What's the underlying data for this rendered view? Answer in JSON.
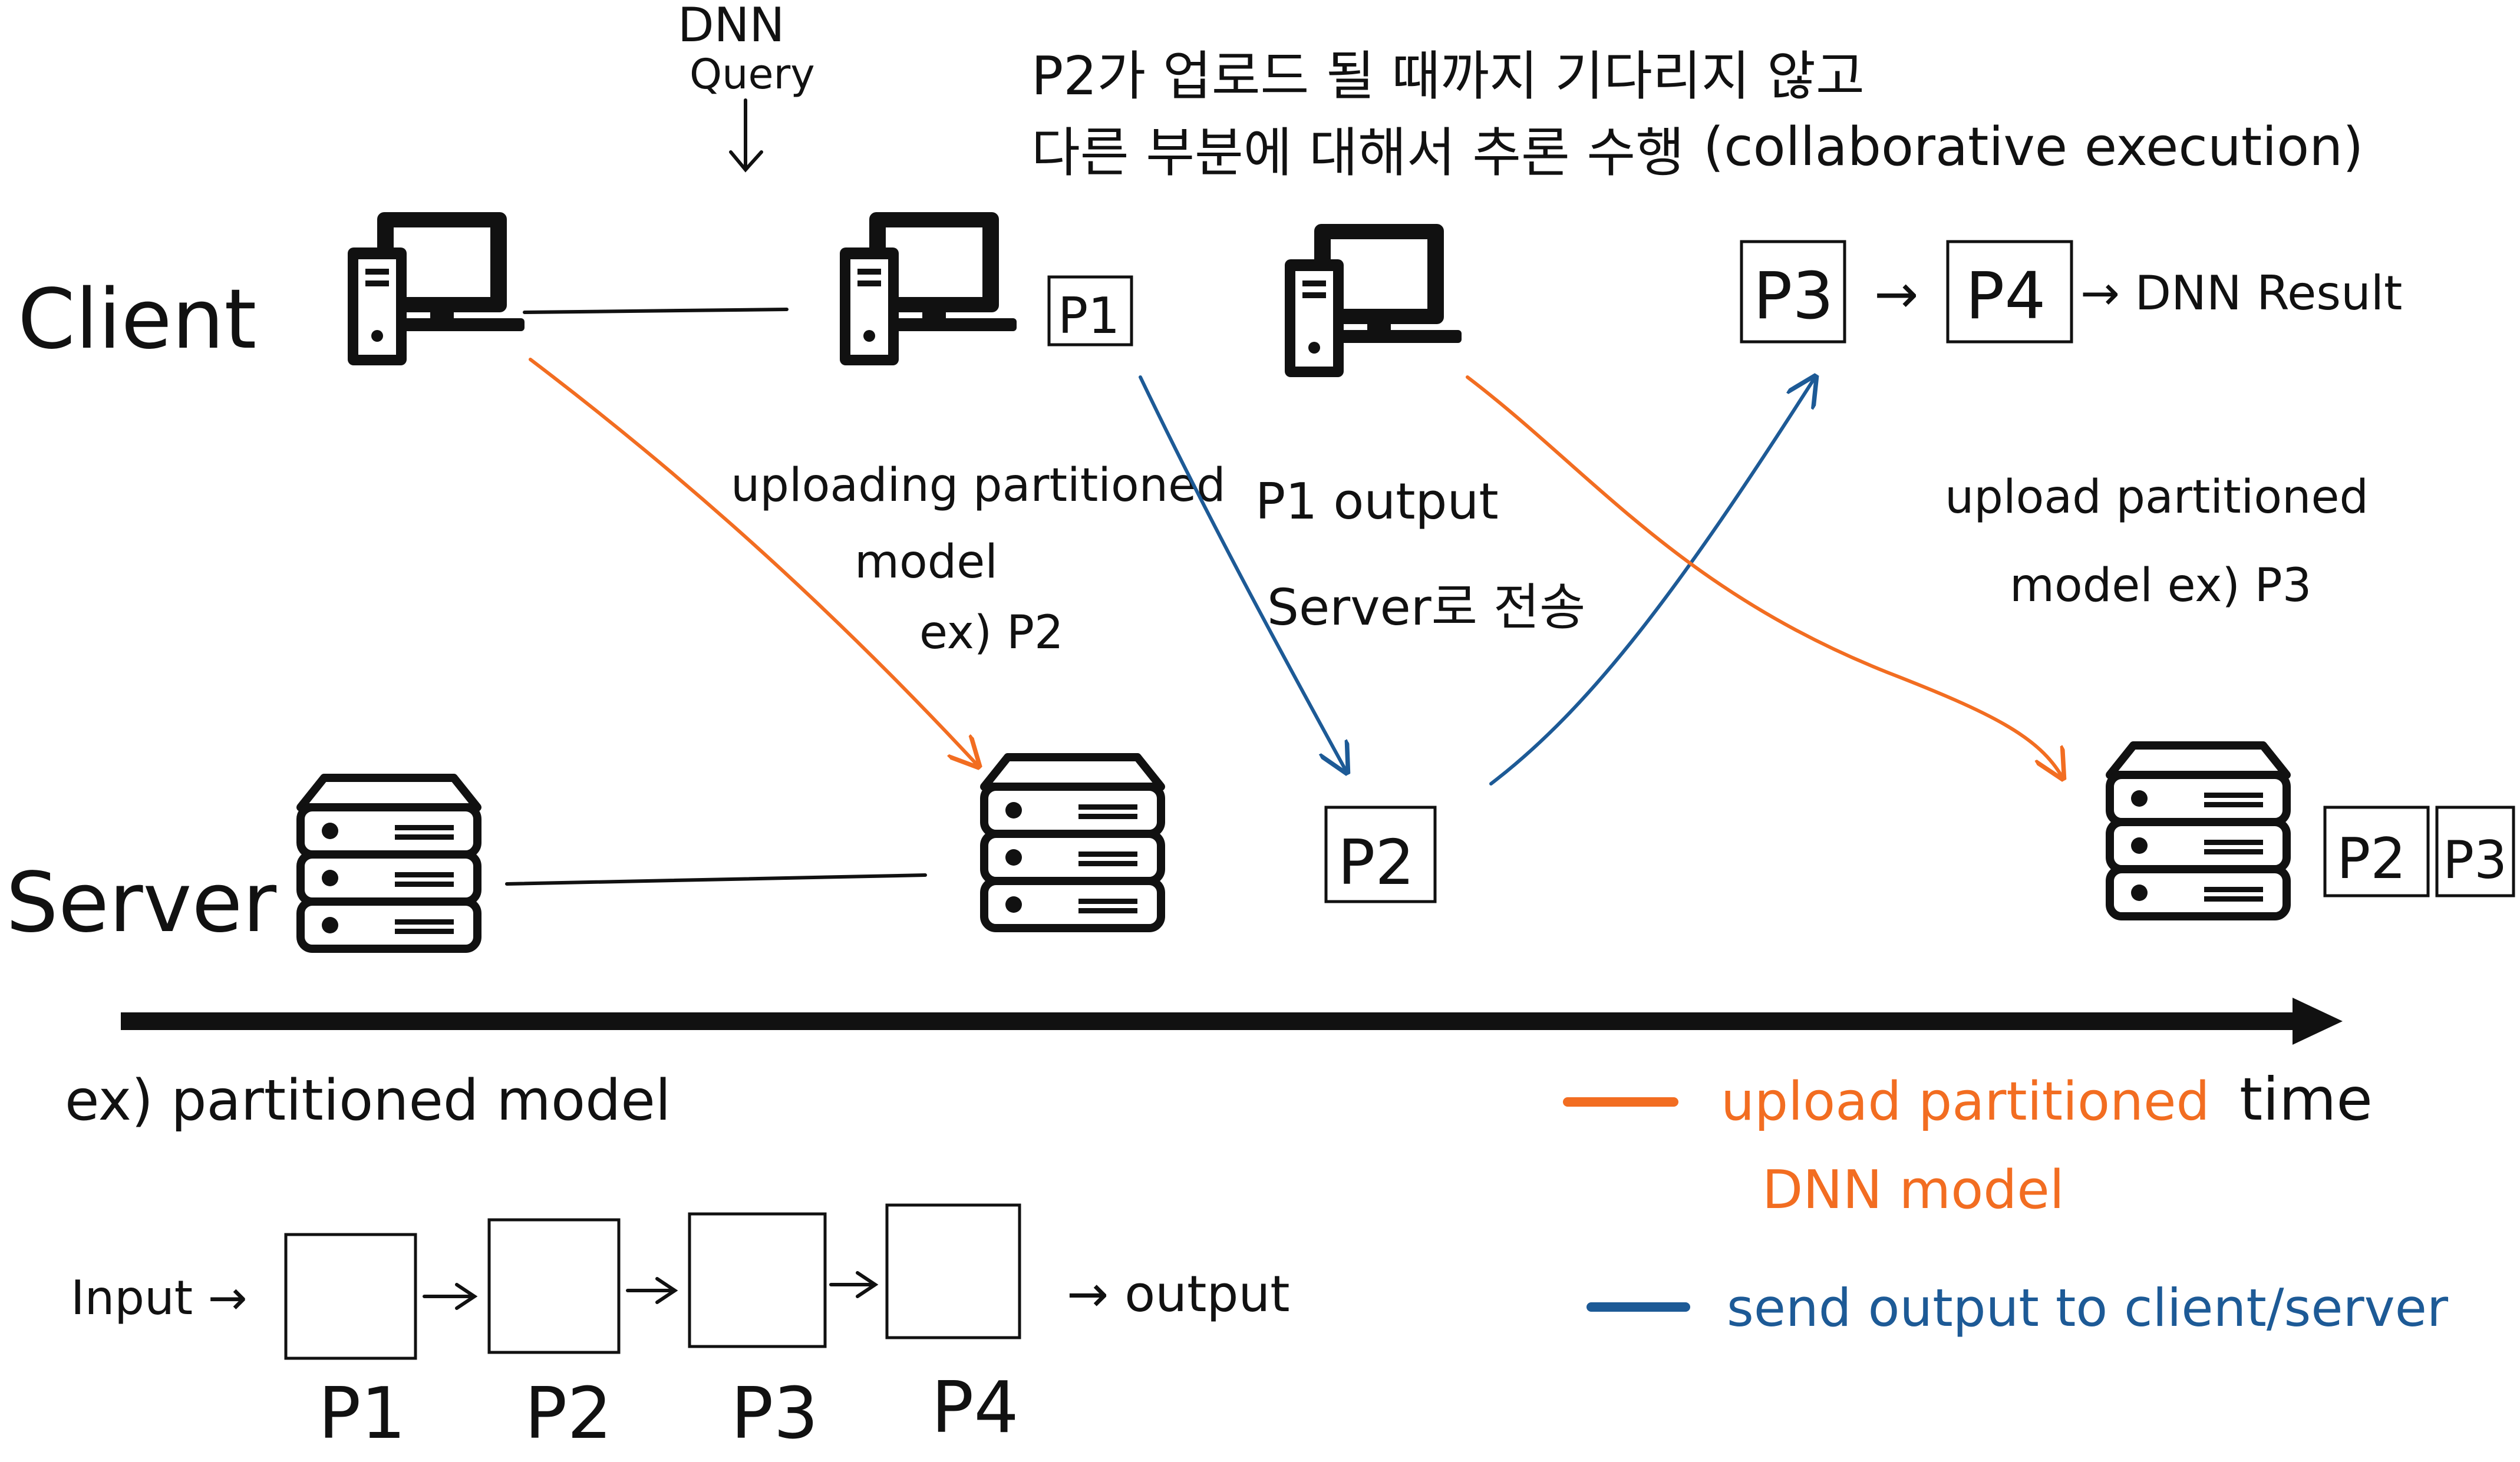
{
  "rows": {
    "client": "Client",
    "server": "Server"
  },
  "query": {
    "line1": "DNN",
    "line2": "Query"
  },
  "header_note": {
    "line1": "P2가 업로드 될 때까지 기다리지 않고",
    "line2": "다른 부분에 대해서 추론 수행",
    "english": "(collaborative execution)"
  },
  "annotations": {
    "upload_p2": {
      "line1": "uploading partitioned",
      "line2": "model",
      "line3": "ex) P2"
    },
    "p1_output": {
      "line1": "P1 output",
      "line2": "Server로 전송"
    },
    "upload_p3": {
      "line1": "upload partitioned",
      "line2": "model ex) P3"
    }
  },
  "boxes": {
    "client_p1": "P1",
    "server_p2": "P2",
    "client_p3": "P3",
    "client_p4": "P4",
    "server_end_p2": "P2",
    "server_end_p3": "P3"
  },
  "result": "→ DNN Result",
  "result_arrow": "→",
  "timeline": {
    "label": "time"
  },
  "example": {
    "title": "ex) partitioned model",
    "input": "Input →",
    "output": "→ output",
    "parts": [
      "P1",
      "P2",
      "P3",
      "P4"
    ]
  },
  "legend": {
    "orange_line1": "upload partitioned",
    "orange_line2": "DNN model",
    "blue": "send output to client/server"
  },
  "colors": {
    "orange": "#f26d21",
    "blue": "#1d5a96",
    "ink": "#111111"
  },
  "icons": {
    "client": "desktop-computer-icon",
    "server": "server-rack-icon"
  }
}
